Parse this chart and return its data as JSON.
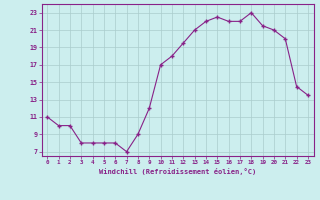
{
  "x": [
    0,
    1,
    2,
    3,
    4,
    5,
    6,
    7,
    8,
    9,
    10,
    11,
    12,
    13,
    14,
    15,
    16,
    17,
    18,
    19,
    20,
    21,
    22,
    23
  ],
  "y": [
    11,
    10,
    10,
    8,
    8,
    8,
    8,
    7,
    9,
    12,
    17,
    18,
    19.5,
    21,
    22,
    22.5,
    22,
    22,
    23,
    21.5,
    21,
    20,
    14.5,
    13.5
  ],
  "line_color": "#882288",
  "marker_color": "#882288",
  "bg_color": "#cceeee",
  "grid_color": "#aacccc",
  "xlabel": "Windchill (Refroidissement éolien,°C)",
  "xlabel_color": "#882288",
  "ylim": [
    6.5,
    24
  ],
  "xlim": [
    -0.5,
    23.5
  ],
  "yticks": [
    7,
    9,
    11,
    13,
    15,
    17,
    19,
    21,
    23
  ],
  "xticks": [
    0,
    1,
    2,
    3,
    4,
    5,
    6,
    7,
    8,
    9,
    10,
    11,
    12,
    13,
    14,
    15,
    16,
    17,
    18,
    19,
    20,
    21,
    22,
    23
  ],
  "xtick_labels": [
    "0",
    "1",
    "2",
    "3",
    "4",
    "5",
    "6",
    "7",
    "8",
    "9",
    "10",
    "11",
    "12",
    "13",
    "14",
    "15",
    "16",
    "17",
    "18",
    "19",
    "20",
    "21",
    "22",
    "23"
  ],
  "figsize": [
    3.2,
    2.0
  ],
  "dpi": 100
}
